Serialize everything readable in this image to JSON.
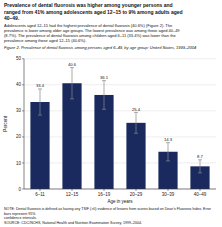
{
  "chart_data": {
    "type": "bar",
    "title": "Prevalence of dental fluorosis was higher among younger persons and\nranged from 41% among adolescents aged 12–15 to 9% among adults aged\n40–49.",
    "subtitle": "Adolescents aged 12–15 had the highest prevalence of dental fluorosis (40.6%) (Figure 2). The\nprevalence is lower among older age groups. The lowest prevalence was among those aged 40–49\n(8.7%). The prevalence of dental fluorosis among children aged 6–11 (33.4%) was lower than the\nprevalence among those aged 12–15 (40.6%).",
    "annotations": [
      "Figure 2. Prevalence of dental fluorosis among persons aged 6–49, by age group: United States, 1999–2004",
      "NOTE: Dental fluorosis is defined as having any TSIF (>0) evidence of lesions from scores based on Dean's Fluorosis Index. Error bars represent 95%\nconfidence intervals.",
      "SOURCE: CDC/NCHS, National Health and Nutrition Examination Survey, 1999–2004."
    ],
    "categories": [
      "6–11",
      "12–15",
      "16–19",
      "20–29",
      "30–39",
      "40–49"
    ],
    "values": [
      33.4,
      40.6,
      36.1,
      25.4,
      14.3,
      8.7
    ],
    "error_low": [
      5.0,
      6.0,
      5.5,
      4.0,
      3.5,
      2.5
    ],
    "error_high": [
      5.0,
      6.0,
      5.5,
      4.0,
      3.5,
      2.5
    ],
    "color": "#1a2a5e",
    "error_color": "#888888",
    "ylabel": "Percent",
    "xlabel": "Age in years",
    "ylim": [
      0,
      50
    ],
    "yticks": [
      0,
      10,
      20,
      30,
      40,
      50
    ],
    "grid": true,
    "data_labels": true
  }
}
